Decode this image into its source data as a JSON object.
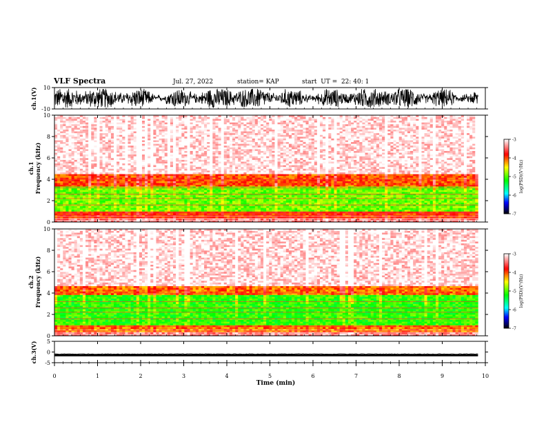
{
  "header": {
    "title": "VLF Spectra",
    "date": "Jul. 27, 2022",
    "station": "station= KAP",
    "start": "start  UT =  22: 40: 1"
  },
  "chart_data": [
    {
      "type": "line",
      "panel": "ch1-waveform",
      "ylabel": "ch.1(V)",
      "ylim": [
        -10,
        10
      ],
      "yticks": [
        "10",
        "-10"
      ],
      "xlim": [
        0,
        10
      ],
      "data_extent_x": [
        0,
        9.83
      ],
      "description_values": {
        "mean": 0,
        "amplitude_range": [
          -9,
          9
        ]
      }
    },
    {
      "type": "heatmap",
      "panel": "ch1-spectrogram",
      "ylabel": "ch.1\nFrequency (kHz)",
      "ylabel_line1": "ch.1",
      "ylabel_line2": "Frequency (kHz)",
      "ylim": [
        0,
        10
      ],
      "yticks": [
        "0",
        "2",
        "4",
        "6",
        "8",
        "10"
      ],
      "xlim": [
        0,
        10
      ],
      "data_extent_x": [
        0,
        9.83
      ],
      "bands": [
        {
          "f": [
            0,
            0.3
          ],
          "level": -3.4
        },
        {
          "f": [
            0.3,
            1.0
          ],
          "level": -3.9
        },
        {
          "f": [
            1.0,
            3.4
          ],
          "level": -4.9
        },
        {
          "f": [
            3.4,
            4.5
          ],
          "level": -4.0
        },
        {
          "f": [
            4.5,
            10
          ],
          "level": -3.1
        }
      ],
      "colorbar": {
        "label": "log(PSD)(V²/Hz)",
        "range": [
          -7,
          -3
        ],
        "ticks": [
          "-3",
          "-4",
          "-5",
          "-6",
          "-7"
        ],
        "colors": [
          "#ffffff",
          "#ff0000",
          "#ffff00",
          "#00ff00",
          "#00ffff",
          "#0000ff",
          "#000000"
        ]
      }
    },
    {
      "type": "heatmap",
      "panel": "ch2-spectrogram",
      "ylabel_line1": "ch.2",
      "ylabel_line2": "Frequency (kHz)",
      "ylim": [
        0,
        10
      ],
      "yticks": [
        "0",
        "2",
        "4",
        "6",
        "8",
        "10"
      ],
      "xlim": [
        0,
        10
      ],
      "data_extent_x": [
        0,
        9.83
      ],
      "bands": [
        {
          "f": [
            0,
            0.3
          ],
          "level": -3.4
        },
        {
          "f": [
            0.3,
            1.0
          ],
          "level": -4.1
        },
        {
          "f": [
            1.0,
            3.8
          ],
          "level": -5.1
        },
        {
          "f": [
            3.8,
            4.6
          ],
          "level": -4.1
        },
        {
          "f": [
            4.6,
            10
          ],
          "level": -3.1
        }
      ],
      "colorbar": {
        "label": "log(PSD)(V²/Hz)",
        "range": [
          -7,
          -3
        ],
        "ticks": [
          "-3",
          "-4",
          "-5",
          "-6",
          "-7"
        ],
        "colors": [
          "#ffffff",
          "#ff0000",
          "#ffff00",
          "#00ff00",
          "#00ffff",
          "#0000ff",
          "#000000"
        ]
      }
    },
    {
      "type": "line",
      "panel": "ch3-waveform",
      "ylabel": "ch.3(V)",
      "ylim": [
        -5,
        5
      ],
      "yticks": [
        "5",
        "0",
        "-5"
      ],
      "xlim": [
        0,
        10
      ],
      "data_extent_x": [
        0,
        9.83
      ],
      "description_values": {
        "mean": -1.5,
        "amplitude_range": [
          -2.0,
          -1.0
        ]
      }
    }
  ],
  "xaxis": {
    "label": "Time (min)",
    "ticks": [
      "0",
      "1",
      "2",
      "3",
      "4",
      "5",
      "6",
      "7",
      "8",
      "9",
      "10"
    ],
    "range": [
      0,
      10
    ]
  },
  "colorbar_label_top": "log(PSD)(V²/Hz)",
  "colorbar_label_bottom": "log(PSD)(V²/Hz)"
}
